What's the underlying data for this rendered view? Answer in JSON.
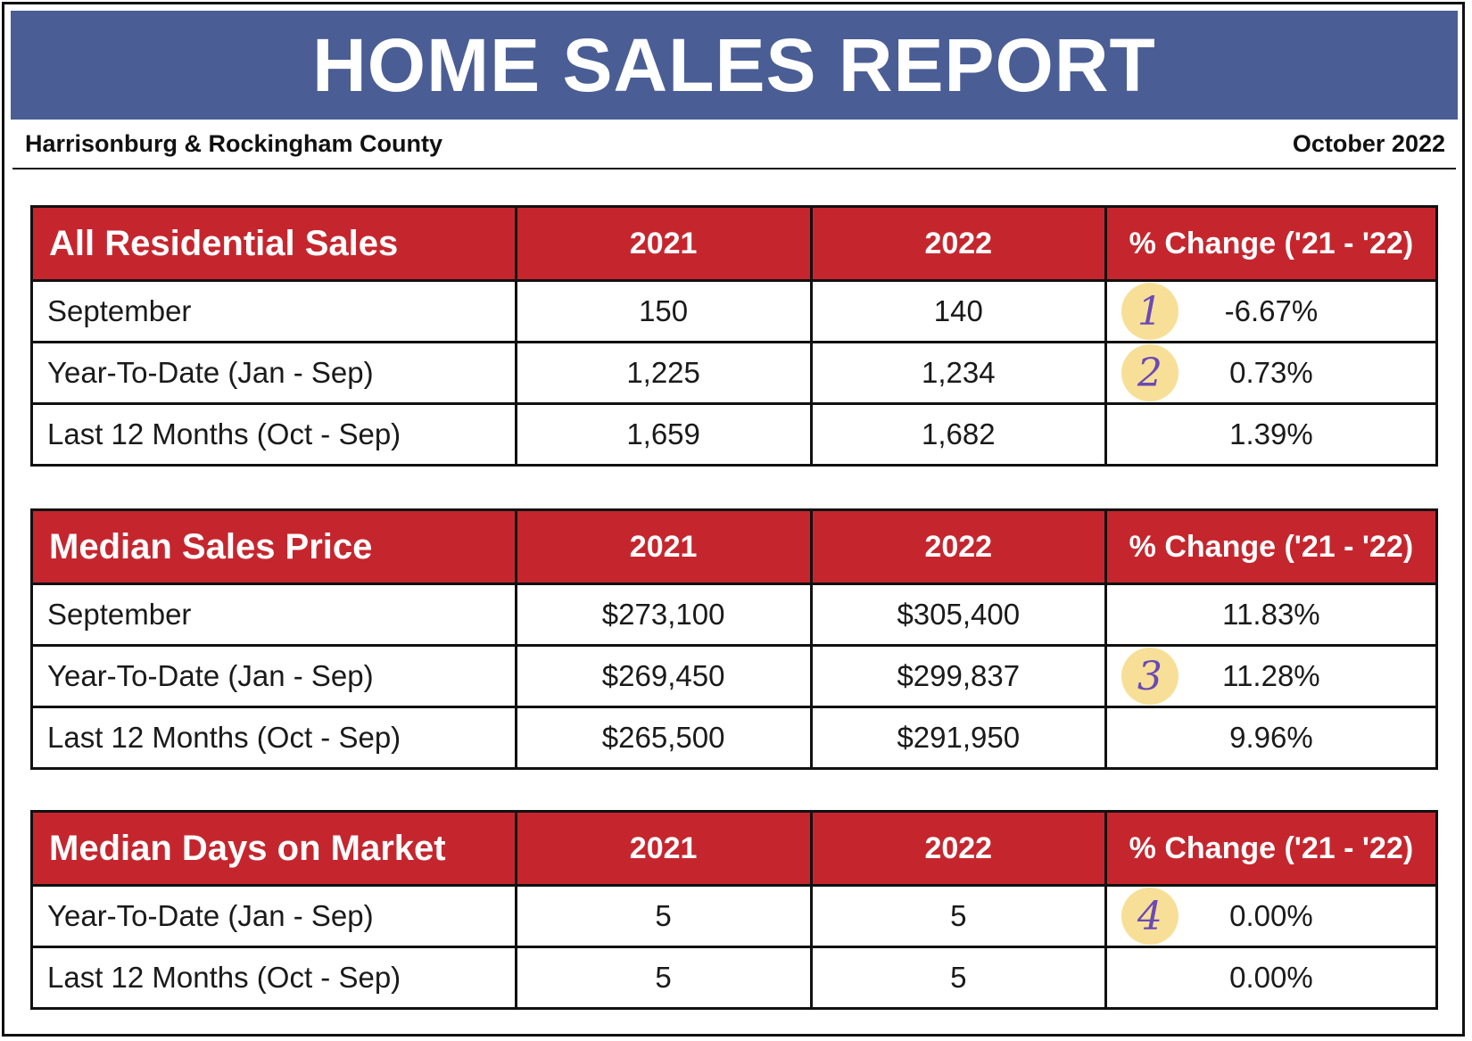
{
  "title": "HOME SALES REPORT",
  "region": "Harrisonburg & Rockingham County",
  "date": "October 2022",
  "colors": {
    "banner": "#4a5d95",
    "header": "#c5262e",
    "marker": "#f8df97",
    "marker_text": "#6a4ab5"
  },
  "tables": [
    {
      "header": [
        "All Residential Sales",
        "2021",
        "2022",
        "% Change ('21 - '22)"
      ],
      "rows": [
        {
          "label": "September",
          "y2021": "150",
          "y2022": "140",
          "change": "-6.67%",
          "marker": "1"
        },
        {
          "label": "Year-To-Date (Jan - Sep)",
          "y2021": "1,225",
          "y2022": "1,234",
          "change": "0.73%",
          "marker": "2"
        },
        {
          "label": "Last 12 Months (Oct - Sep)",
          "y2021": "1,659",
          "y2022": "1,682",
          "change": "1.39%"
        }
      ]
    },
    {
      "header": [
        "Median Sales Price",
        "2021",
        "2022",
        "% Change ('21 - '22)"
      ],
      "rows": [
        {
          "label": "September",
          "y2021": "$273,100",
          "y2022": "$305,400",
          "change": "11.83%"
        },
        {
          "label": "Year-To-Date (Jan - Sep)",
          "y2021": "$269,450",
          "y2022": "$299,837",
          "change": "11.28%",
          "marker": "3"
        },
        {
          "label": "Last 12 Months (Oct - Sep)",
          "y2021": "$265,500",
          "y2022": "$291,950",
          "change": "9.96%"
        }
      ]
    },
    {
      "header": [
        "Median Days on Market",
        "2021",
        "2022",
        "% Change ('21 - '22)"
      ],
      "rows": [
        {
          "label": "Year-To-Date (Jan - Sep)",
          "y2021": "5",
          "y2022": "5",
          "change": "0.00%",
          "marker": "4"
        },
        {
          "label": "Last 12 Months (Oct - Sep)",
          "y2021": "5",
          "y2022": "5",
          "change": "0.00%"
        }
      ]
    }
  ]
}
